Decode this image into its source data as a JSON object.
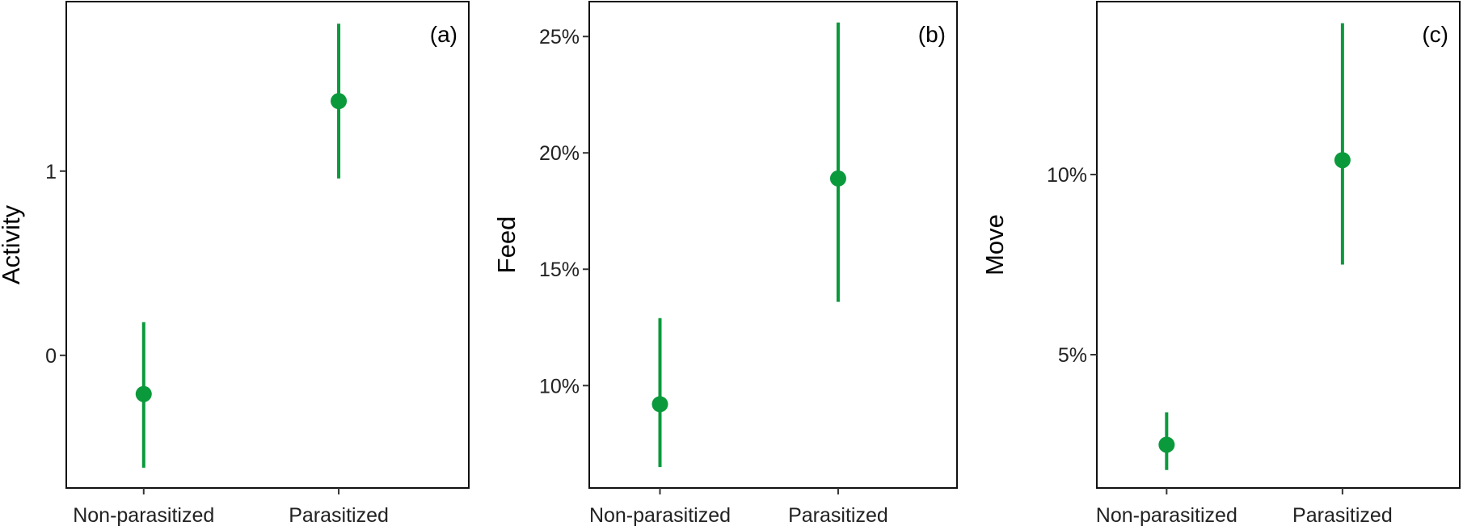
{
  "marker_color": "#0a9a3c",
  "chart_data": [
    {
      "type": "scatter",
      "panel_label": "(a)",
      "ylabel": "Activity",
      "categories": [
        "Non-parasitized",
        "Parasitized"
      ],
      "estimate": [
        -0.21,
        1.38
      ],
      "lower": [
        -0.61,
        0.96
      ],
      "upper": [
        0.18,
        1.8
      ],
      "yticks": [
        0,
        1
      ],
      "yticklabels": [
        "0",
        "1"
      ],
      "ylim": [
        -0.72,
        1.92
      ],
      "grid": false
    },
    {
      "type": "scatter",
      "panel_label": "(b)",
      "ylabel": "Feed",
      "categories": [
        "Non-parasitized",
        "Parasitized"
      ],
      "estimate": [
        9.2,
        18.9
      ],
      "lower": [
        6.5,
        13.6
      ],
      "upper": [
        12.9,
        25.6
      ],
      "yticks": [
        10,
        15,
        20,
        25
      ],
      "yticklabels": [
        "10%",
        "15%",
        "20%",
        "25%"
      ],
      "ylim": [
        5.6,
        26.5
      ],
      "grid": false
    },
    {
      "type": "scatter",
      "panel_label": "(c)",
      "ylabel": "Move",
      "categories": [
        "Non-parasitized",
        "Parasitized"
      ],
      "estimate": [
        2.5,
        10.4
      ],
      "lower": [
        1.8,
        7.5
      ],
      "upper": [
        3.4,
        14.2
      ],
      "yticks": [
        5,
        10
      ],
      "yticklabels": [
        "5%",
        "10%"
      ],
      "ylim": [
        1.3,
        14.8
      ],
      "grid": false
    }
  ]
}
